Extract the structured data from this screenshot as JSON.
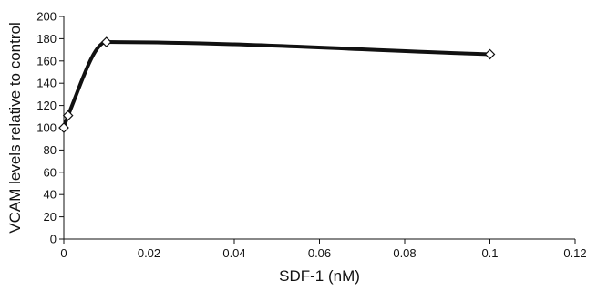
{
  "chart_data": {
    "type": "line",
    "title": "",
    "xlabel": "SDF-1 (nM)",
    "ylabel": "VCAM levels relative to control",
    "xlim": [
      0,
      0.12
    ],
    "ylim": [
      0,
      200
    ],
    "xticks": [
      0,
      0.02,
      0.04,
      0.06,
      0.08,
      0.1,
      0.12
    ],
    "xtick_labels": [
      "0",
      "0.02",
      "0.04",
      "0.06",
      "0.08",
      "0.1",
      "0.12"
    ],
    "yticks": [
      0,
      20,
      40,
      60,
      80,
      100,
      120,
      140,
      160,
      180,
      200
    ],
    "ytick_labels": [
      "0",
      "20",
      "40",
      "60",
      "80",
      "100",
      "120",
      "140",
      "160",
      "180",
      "200"
    ],
    "grid": false,
    "legend": "none",
    "line_style": "smoothed",
    "marker": "open-diamond",
    "line_color": "#111111",
    "series": [
      {
        "x": [
          0,
          0.001,
          0.01,
          0.1
        ],
        "y": [
          100,
          111,
          177,
          166
        ]
      }
    ]
  }
}
